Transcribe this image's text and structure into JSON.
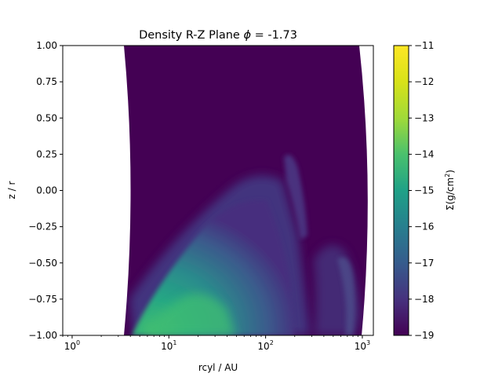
{
  "chart_data": {
    "type": "heatmap",
    "title": "Density R-Z Plane ϕ =  -1.73",
    "title_text": "Density R-Z Plane ",
    "title_phi": "ϕ",
    "title_tail": " =  -1.73",
    "xlabel": "rcyl / AU",
    "ylabel": "z / r",
    "xscale": "log",
    "xlim": [
      0.8,
      1300
    ],
    "ylim": [
      -1.0,
      1.0
    ],
    "xticks": [
      {
        "value": 1,
        "base": "10",
        "exp": "0"
      },
      {
        "value": 10,
        "base": "10",
        "exp": "1"
      },
      {
        "value": 100,
        "base": "10",
        "exp": "2"
      },
      {
        "value": 1000,
        "base": "10",
        "exp": "3"
      }
    ],
    "yticks": [
      {
        "value": 1.0,
        "label": "1.00"
      },
      {
        "value": 0.75,
        "label": "0.75"
      },
      {
        "value": 0.5,
        "label": "0.50"
      },
      {
        "value": 0.25,
        "label": "0.25"
      },
      {
        "value": 0.0,
        "label": "0.00"
      },
      {
        "value": -0.25,
        "label": "−0.25"
      },
      {
        "value": -0.5,
        "label": "−0.50"
      },
      {
        "value": -0.75,
        "label": "−0.75"
      },
      {
        "value": -1.0,
        "label": "−1.00"
      }
    ],
    "grid": false,
    "colormap": "viridis",
    "colorbar": {
      "label": "Σ(g/cm²)",
      "label_base": "Σ(g/cm",
      "label_exp": "2",
      "label_close": ")",
      "vmin": -19,
      "vmax": -11,
      "ticks": [
        {
          "value": -11,
          "label": "−11"
        },
        {
          "value": -12,
          "label": "−12"
        },
        {
          "value": -13,
          "label": "−13"
        },
        {
          "value": -14,
          "label": "−14"
        },
        {
          "value": -15,
          "label": "−15"
        },
        {
          "value": -16,
          "label": "−16"
        },
        {
          "value": -17,
          "label": "−17"
        },
        {
          "value": -18,
          "label": "−18"
        },
        {
          "value": -19,
          "label": "−19"
        }
      ]
    },
    "domain_boundary": {
      "inner_r_at_midplane": 5.5,
      "inner_r_at_poles": 3.6,
      "outer_r_at_midplane": 1300,
      "outer_r_at_poles": 900
    },
    "background_value": -19,
    "features": [
      {
        "name": "inner-lower-wedge",
        "r_start": 5,
        "r_end": 250,
        "z_top": 0.0,
        "z_bottom": -1.0,
        "peak_value": -14,
        "peak_r": 15,
        "peak_z": -0.92
      },
      {
        "name": "upper-streamer",
        "r": 200,
        "z_top": 0.25,
        "z_bottom": -0.2,
        "value": -18
      },
      {
        "name": "outer-streamers",
        "r_start": 350,
        "r_end": 900,
        "z_top": -0.3,
        "z_bottom": -1.0,
        "value": -17.5
      }
    ],
    "colors": {
      "v_min": "#440154",
      "v_mid": "#21918c",
      "v_max": "#fde725"
    }
  }
}
